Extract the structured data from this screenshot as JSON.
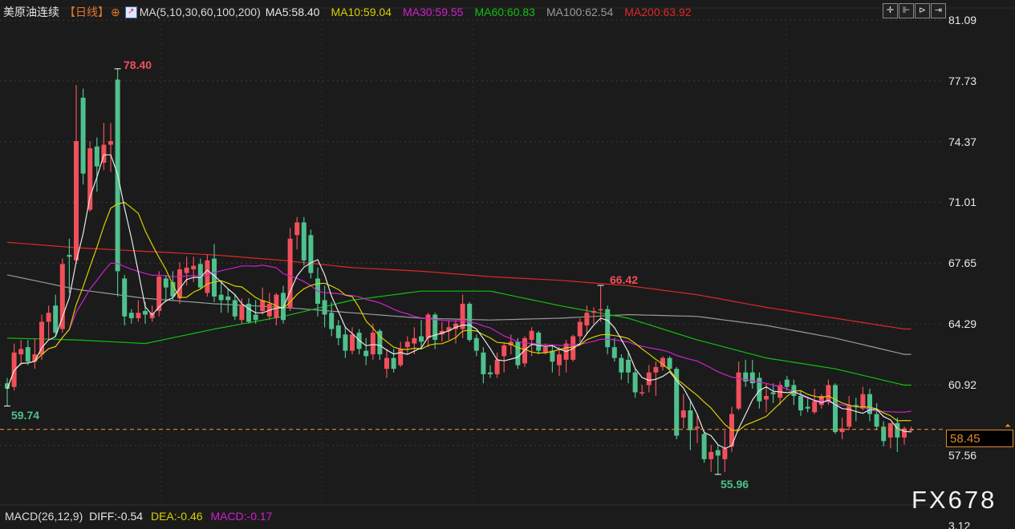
{
  "header": {
    "symbol": "美原油连续",
    "period": "【日线】",
    "ma_label": "MA(5,10,30,60,100,200)",
    "ma5": "MA5:58.40",
    "ma10": "MA10:59.04",
    "ma30": "MA30:59.55",
    "ma60": "MA60:60.83",
    "ma100": "MA100:62.54",
    "ma200": "MA200:63.92",
    "icons": [
      "target-icon",
      "chart-line-icon"
    ]
  },
  "toolbar": {
    "icons": [
      "crosshair-icon",
      "jump-start-icon",
      "play-icon",
      "exit-icon"
    ],
    "glyphs": [
      "✛",
      "⊩",
      "⊳",
      "⇥"
    ]
  },
  "macd": {
    "label": "MACD(26,12,9)",
    "diff": "DIFF:-0.54",
    "dea": "DEA:-0.46",
    "macd": "MACD:-0.17",
    "axis_top": "3.12"
  },
  "watermark": "FX678",
  "current_price": "58.45",
  "colors": {
    "up": "#f0505a",
    "down": "#4fc08d",
    "ma5": "#e8e8e8",
    "ma10": "#d8d000",
    "ma30": "#d020d0",
    "ma60": "#10c010",
    "ma100": "#9a9a9a",
    "ma200": "#e02828",
    "price_line": "#e0892c",
    "background": "#1b1b1b"
  },
  "chart_data": {
    "type": "candlestick",
    "y_ticks": [
      "81.09",
      "77.73",
      "74.37",
      "71.01",
      "67.65",
      "64.29",
      "60.92",
      "57.56"
    ],
    "ylim": [
      55.0,
      81.6
    ],
    "annotations": {
      "high": "78.40",
      "low": "55.96",
      "first_low": "59.74",
      "local_high": "66.42"
    },
    "grid": true,
    "ohlc": [
      [
        61.0,
        61.3,
        59.74,
        60.7
      ],
      [
        60.8,
        63.2,
        60.6,
        62.7
      ],
      [
        62.6,
        63.4,
        62.0,
        62.9
      ],
      [
        63.0,
        63.4,
        62.0,
        62.2
      ],
      [
        62.2,
        63.5,
        61.8,
        62.6
      ],
      [
        62.6,
        64.8,
        62.3,
        64.4
      ],
      [
        64.4,
        65.3,
        63.4,
        64.9
      ],
      [
        65.3,
        65.9,
        63.6,
        63.8
      ],
      [
        64.0,
        67.9,
        63.8,
        67.6
      ],
      [
        68.1,
        69.0,
        66.0,
        68.0
      ],
      [
        67.8,
        77.5,
        67.6,
        74.4
      ],
      [
        76.8,
        77.3,
        72.0,
        72.6
      ],
      [
        70.6,
        74.4,
        70.5,
        74.0
      ],
      [
        74.1,
        74.6,
        71.6,
        73.0
      ],
      [
        73.2,
        75.4,
        72.8,
        74.2
      ],
      [
        74.2,
        75.4,
        72.7,
        74.4
      ],
      [
        77.8,
        78.4,
        65.8,
        67.2
      ],
      [
        66.8,
        67.0,
        64.2,
        64.7
      ],
      [
        64.9,
        65.1,
        64.3,
        64.6
      ],
      [
        64.6,
        65.6,
        64.4,
        64.9
      ],
      [
        65.0,
        65.5,
        64.3,
        64.8
      ],
      [
        64.6,
        65.3,
        64.4,
        64.9
      ],
      [
        65.0,
        67.2,
        64.7,
        66.9
      ],
      [
        66.8,
        67.0,
        65.5,
        66.3
      ],
      [
        66.6,
        67.2,
        65.6,
        65.8
      ],
      [
        65.7,
        67.7,
        65.4,
        67.3
      ],
      [
        67.1,
        68.0,
        66.4,
        67.4
      ],
      [
        67.3,
        68.0,
        66.6,
        67.5
      ],
      [
        67.6,
        67.9,
        66.2,
        66.3
      ],
      [
        66.0,
        68.1,
        65.8,
        67.8
      ],
      [
        67.9,
        68.7,
        65.5,
        65.8
      ],
      [
        65.9,
        66.6,
        64.9,
        65.6
      ],
      [
        65.8,
        66.2,
        64.9,
        65.6
      ],
      [
        65.6,
        65.9,
        64.5,
        64.7
      ],
      [
        64.5,
        65.7,
        64.3,
        65.3
      ],
      [
        65.4,
        65.7,
        64.3,
        64.4
      ],
      [
        64.8,
        65.6,
        64.3,
        64.5
      ],
      [
        65.0,
        66.3,
        64.8,
        65.6
      ],
      [
        64.7,
        66.0,
        64.5,
        65.4
      ],
      [
        64.6,
        66.0,
        64.2,
        65.9
      ],
      [
        66.0,
        66.4,
        64.3,
        64.5
      ],
      [
        65.2,
        69.6,
        65.0,
        69.0
      ],
      [
        69.2,
        70.2,
        68.4,
        69.9
      ],
      [
        69.9,
        70.2,
        67.5,
        67.8
      ],
      [
        69.2,
        69.5,
        66.8,
        67.1
      ],
      [
        66.8,
        67.4,
        64.7,
        65.4
      ],
      [
        65.6,
        66.4,
        64.1,
        64.8
      ],
      [
        64.9,
        65.5,
        63.6,
        64.0
      ],
      [
        64.2,
        64.5,
        63.1,
        63.5
      ],
      [
        63.7,
        64.1,
        62.4,
        62.8
      ],
      [
        62.8,
        64.1,
        62.6,
        63.7
      ],
      [
        63.8,
        64.0,
        62.6,
        62.9
      ],
      [
        62.8,
        63.5,
        62.0,
        62.5
      ],
      [
        62.6,
        64.3,
        62.3,
        63.8
      ],
      [
        63.9,
        64.0,
        62.3,
        62.6
      ],
      [
        61.8,
        62.9,
        61.3,
        62.4
      ],
      [
        62.4,
        62.9,
        61.6,
        61.8
      ],
      [
        62.0,
        63.3,
        61.9,
        62.9
      ],
      [
        63.0,
        63.6,
        62.6,
        63.3
      ],
      [
        63.2,
        64.1,
        62.6,
        63.5
      ],
      [
        63.6,
        64.5,
        63.0,
        63.3
      ],
      [
        63.5,
        64.9,
        63.0,
        64.8
      ],
      [
        64.8,
        64.9,
        62.9,
        63.4
      ],
      [
        63.7,
        64.4,
        63.3,
        63.9
      ],
      [
        63.9,
        64.5,
        63.4,
        64.1
      ],
      [
        64.0,
        64.5,
        63.2,
        64.3
      ],
      [
        64.0,
        65.9,
        63.5,
        65.4
      ],
      [
        65.4,
        65.5,
        63.3,
        63.4
      ],
      [
        63.5,
        63.7,
        62.5,
        62.8
      ],
      [
        62.7,
        63.0,
        61.0,
        61.5
      ],
      [
        61.6,
        62.0,
        61.3,
        61.5
      ],
      [
        61.5,
        62.7,
        61.3,
        62.3
      ],
      [
        62.5,
        63.2,
        61.6,
        63.1
      ],
      [
        63.1,
        63.7,
        62.6,
        63.3
      ],
      [
        63.3,
        63.5,
        61.8,
        62.0
      ],
      [
        62.1,
        63.6,
        61.9,
        63.5
      ],
      [
        63.4,
        64.1,
        62.5,
        63.9
      ],
      [
        63.8,
        63.9,
        62.6,
        62.8
      ],
      [
        62.7,
        63.2,
        62.6,
        63.0
      ],
      [
        62.8,
        63.1,
        61.6,
        62.2
      ],
      [
        62.0,
        63.0,
        61.4,
        62.6
      ],
      [
        62.3,
        63.4,
        61.6,
        63.2
      ],
      [
        62.3,
        63.7,
        62.2,
        63.6
      ],
      [
        63.6,
        64.6,
        63.3,
        64.4
      ],
      [
        64.2,
        65.3,
        63.7,
        64.9
      ],
      [
        64.9,
        65.2,
        64.3,
        65.0
      ],
      [
        65.1,
        66.42,
        64.4,
        65.1
      ],
      [
        65.1,
        65.3,
        62.6,
        63.0
      ],
      [
        63.0,
        63.5,
        62.2,
        62.4
      ],
      [
        62.4,
        62.6,
        61.2,
        61.6
      ],
      [
        62.3,
        62.8,
        61.0,
        61.6
      ],
      [
        61.6,
        61.8,
        60.2,
        60.5
      ],
      [
        60.5,
        60.9,
        60.3,
        60.5
      ],
      [
        60.9,
        62.0,
        60.5,
        61.6
      ],
      [
        61.6,
        62.2,
        60.3,
        61.9
      ],
      [
        61.9,
        62.5,
        61.7,
        62.4
      ],
      [
        62.4,
        62.5,
        61.7,
        61.8
      ],
      [
        61.8,
        61.9,
        57.9,
        58.1
      ],
      [
        59.1,
        60.4,
        58.5,
        59.5
      ],
      [
        59.5,
        60.1,
        57.3,
        58.4
      ],
      [
        58.5,
        59.3,
        57.7,
        58.6
      ],
      [
        58.2,
        58.4,
        56.6,
        56.8
      ],
      [
        56.8,
        57.6,
        56.1,
        57.2
      ],
      [
        57.3,
        57.6,
        55.96,
        57.0
      ],
      [
        56.8,
        58.4,
        56.1,
        57.4
      ],
      [
        57.5,
        59.7,
        57.2,
        59.3
      ],
      [
        59.6,
        62.2,
        59.5,
        61.6
      ],
      [
        61.6,
        62.3,
        60.8,
        61.1
      ],
      [
        61.6,
        62.3,
        60.7,
        61.0
      ],
      [
        61.3,
        61.6,
        59.6,
        60.0
      ],
      [
        60.1,
        61.0,
        59.4,
        60.3
      ],
      [
        60.5,
        61.0,
        59.9,
        60.4
      ],
      [
        60.2,
        61.1,
        59.8,
        60.9
      ],
      [
        61.2,
        61.4,
        60.6,
        60.8
      ],
      [
        60.9,
        61.2,
        59.8,
        60.3
      ],
      [
        60.3,
        60.6,
        59.2,
        59.5
      ],
      [
        59.7,
        60.2,
        59.4,
        59.6
      ],
      [
        59.4,
        60.7,
        59.3,
        60.0
      ],
      [
        59.8,
        60.4,
        59.6,
        60.3
      ],
      [
        60.0,
        61.2,
        59.8,
        60.9
      ],
      [
        60.9,
        61.0,
        58.2,
        58.3
      ],
      [
        58.3,
        59.1,
        57.9,
        58.5
      ],
      [
        58.6,
        60.3,
        58.4,
        59.8
      ],
      [
        59.8,
        60.2,
        58.9,
        59.7
      ],
      [
        59.6,
        60.8,
        59.5,
        60.4
      ],
      [
        60.4,
        60.7,
        58.9,
        59.3
      ],
      [
        59.3,
        59.9,
        58.4,
        58.6
      ],
      [
        58.6,
        58.9,
        57.5,
        57.8
      ],
      [
        58.0,
        58.6,
        57.4,
        58.8
      ],
      [
        58.8,
        59.1,
        57.2,
        58.0
      ],
      [
        58.0,
        58.6,
        57.6,
        58.5
      ],
      [
        58.45,
        58.6,
        58.3,
        58.45
      ]
    ],
    "ma_sampled_every_10_bars": {
      "ma60": [
        63.5,
        63.4,
        63.2,
        64.0,
        64.7,
        65.6,
        66.1,
        66.1,
        65.3,
        64.6,
        63.4,
        62.4,
        61.8,
        60.9
      ],
      "ma100": [
        67.0,
        66.2,
        65.7,
        65.4,
        65.2,
        64.9,
        64.6,
        64.5,
        64.6,
        64.8,
        64.7,
        64.2,
        63.5,
        62.6
      ],
      "ma200": [
        68.8,
        68.5,
        68.3,
        68.1,
        67.8,
        67.4,
        67.2,
        66.9,
        66.7,
        66.4,
        65.9,
        65.2,
        64.6,
        64.0
      ]
    }
  }
}
